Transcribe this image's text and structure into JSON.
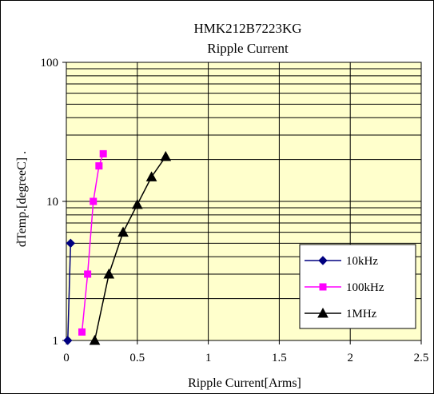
{
  "chart_data": {
    "type": "line",
    "title": "HMK212B7223KG",
    "subtitle": "Ripple Current",
    "xlabel": "Ripple Current[Arms]",
    "ylabel": "dTemp.[degreeC] .",
    "xlim": [
      0,
      2.5
    ],
    "ylim": [
      1,
      100
    ],
    "yscale": "log",
    "xticks": [
      0,
      0.5,
      1,
      1.5,
      2,
      2.5
    ],
    "xtick_labels": [
      "0",
      "0.5",
      "1",
      "1.5",
      "2",
      "2.5"
    ],
    "yticks": [
      1,
      10,
      100
    ],
    "ytick_labels": [
      "1",
      "10",
      "100"
    ],
    "grid": true,
    "legend_position": "right",
    "plot_background": "#ffffcc",
    "series": [
      {
        "name": "10kHz",
        "color": "#000080",
        "marker": "diamond",
        "x": [
          0.01,
          0.03
        ],
        "y": [
          1,
          5
        ]
      },
      {
        "name": "100kHz",
        "color": "#ff00ff",
        "marker": "square",
        "x": [
          0.11,
          0.15,
          0.19,
          0.23,
          0.26
        ],
        "y": [
          1.15,
          3,
          10,
          18,
          22
        ]
      },
      {
        "name": "1MHz",
        "color": "#000000",
        "marker": "triangle",
        "x": [
          0.2,
          0.3,
          0.4,
          0.5,
          0.6,
          0.7
        ],
        "y": [
          1,
          3,
          6,
          9.5,
          15,
          21
        ]
      }
    ]
  }
}
